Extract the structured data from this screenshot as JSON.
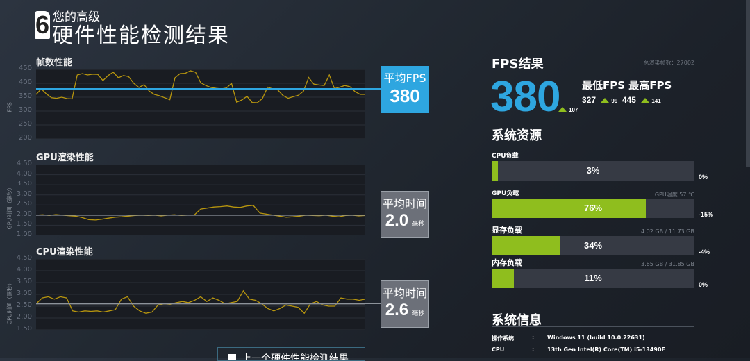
{
  "header": {
    "subtitle": "您的高级",
    "title": "硬件性能检测结果",
    "logo": "6"
  },
  "fps_chart": {
    "title": "帧数性能",
    "ylabel": "FPS",
    "yticks": [
      "450",
      "400",
      "350",
      "300",
      "250",
      "200"
    ],
    "ylim": [
      200,
      450
    ],
    "avg": 380,
    "avg_label": "平均FPS",
    "avg_value": "380",
    "values": [
      360,
      380,
      362,
      348,
      346,
      350,
      345,
      344,
      430,
      435,
      430,
      433,
      432,
      410,
      428,
      440,
      420,
      428,
      424,
      400,
      385,
      395,
      372,
      360,
      355,
      348,
      341,
      420,
      435,
      436,
      445,
      440,
      402,
      392,
      385,
      382,
      380,
      383,
      400,
      332,
      340,
      353,
      331,
      330,
      345,
      386,
      380,
      376,
      356,
      346,
      352,
      357,
      372,
      421,
      397,
      394,
      392,
      430,
      381,
      386,
      392,
      388,
      370,
      360,
      360
    ]
  },
  "gpu_chart": {
    "title": "GPU渲染性能",
    "ylabel": "GPU时间（毫秒）",
    "yticks": [
      "4.50",
      "4.00",
      "3.50",
      "3.00",
      "2.50",
      "2.00",
      "1.50",
      "1.00"
    ],
    "ylim": [
      1.0,
      4.5
    ],
    "avg": 2.0,
    "avg_label": "平均时间",
    "avg_value": "2.0",
    "unit": "毫秒",
    "values": [
      2.0,
      2.02,
      1.98,
      2.03,
      2.0,
      1.97,
      1.95,
      1.88,
      1.78,
      1.76,
      1.8,
      1.85,
      1.9,
      1.92,
      1.95,
      1.98,
      2.0,
      1.98,
      2.0,
      1.96,
      2.0,
      2.02,
      1.98,
      2.0,
      2.0,
      2.3,
      2.35,
      2.4,
      2.42,
      2.45,
      2.4,
      2.38,
      2.45,
      2.48,
      2.1,
      2.05,
      2.0,
      1.95,
      1.9,
      1.92,
      1.95,
      2.0,
      1.98,
      1.97,
      2.0,
      1.95,
      1.92,
      1.98,
      2.0,
      1.96,
      1.98
    ]
  },
  "cpu_chart": {
    "title": "CPU渲染性能",
    "ylabel": "CPU时间（毫秒）",
    "yticks": [
      "4.50",
      "4.00",
      "3.50",
      "3.00",
      "2.50",
      "2.00",
      "1.50"
    ],
    "ylim": [
      1.5,
      4.5
    ],
    "avg": 2.6,
    "avg_label": "平均时间",
    "avg_value": "2.6",
    "unit": "毫秒",
    "values": [
      2.6,
      2.85,
      2.9,
      2.8,
      2.9,
      2.85,
      2.3,
      2.25,
      2.3,
      2.28,
      2.3,
      2.25,
      2.3,
      2.35,
      2.8,
      2.9,
      2.5,
      2.3,
      2.2,
      2.25,
      2.55,
      2.6,
      2.58,
      2.65,
      2.7,
      2.65,
      2.75,
      2.9,
      2.7,
      2.85,
      2.75,
      2.6,
      2.65,
      2.7,
      3.15,
      2.8,
      2.75,
      2.6,
      2.4,
      2.3,
      2.4,
      2.55,
      2.5,
      2.45,
      2.2,
      2.6,
      2.7,
      2.55,
      2.5,
      2.5,
      2.85,
      2.8,
      2.8,
      2.75,
      2.8
    ]
  },
  "previous_results": {
    "label": "上一个硬件性能检测结果"
  },
  "fps_result": {
    "title": "FPS结果",
    "total_frames": "总渲染帧数：27002",
    "avg": "380",
    "avg_delta": "107",
    "min_label": "最低FPS",
    "max_label": "最高FPS",
    "min": "327",
    "min_delta": "99",
    "max": "445",
    "max_delta": "141"
  },
  "resources": {
    "title": "系统资源",
    "items": [
      {
        "label": "CPU负载",
        "meta": "",
        "pct": 3,
        "text": "3%",
        "delta": "0%"
      },
      {
        "label": "GPU负载",
        "meta": "GPU温度 57 ℃",
        "pct": 76,
        "text": "76%",
        "delta": "-15%"
      },
      {
        "label": "显存负载",
        "meta": "4.02 GB / 11.73 GB",
        "pct": 34,
        "text": "34%",
        "delta": "-4%"
      },
      {
        "label": "内存负载",
        "meta": "3.65 GB / 31.85 GB",
        "pct": 11,
        "text": "11%",
        "delta": "0%"
      }
    ]
  },
  "sysinfo": {
    "title": "系统信息",
    "rows": [
      {
        "k": "操作系统",
        "sep": ":",
        "v": "Windows 11 (build 10.0.22631)"
      },
      {
        "k": "CPU",
        "sep": ":",
        "v": "13th Gen Intel(R) Core(TM) i5-13490F"
      }
    ]
  },
  "colors": {
    "accent_blue": "#2ea6e0",
    "load_green": "#8fbe1e",
    "line_yellow": "#b8960e"
  }
}
